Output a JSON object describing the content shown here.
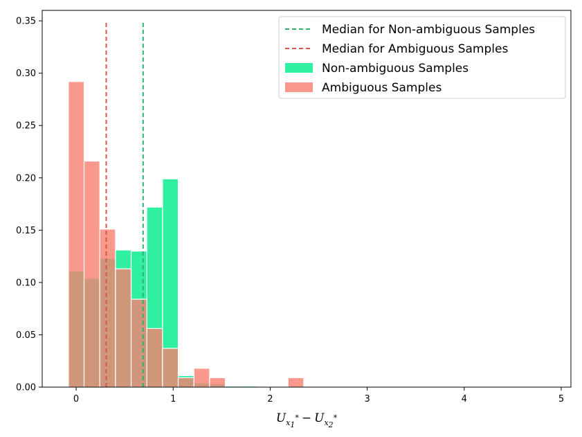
{
  "chart_data": {
    "type": "bar",
    "title": "",
    "xlabel": {
      "U": "U",
      "x": "x",
      "sub1": "1",
      "sub2": "2",
      "star": "*",
      "minus": "−"
    },
    "ylabel": "",
    "xlim": [
      -0.35,
      5.1
    ],
    "ylim": [
      0,
      0.36
    ],
    "xticks": [
      0,
      1,
      2,
      3,
      4,
      5
    ],
    "xtick_labels": [
      "0",
      "1",
      "2",
      "3",
      "4",
      "5"
    ],
    "yticks": [
      0.0,
      0.05,
      0.1,
      0.15,
      0.2,
      0.25,
      0.3,
      0.35
    ],
    "ytick_labels": [
      "0.00",
      "0.05",
      "0.10",
      "0.15",
      "0.20",
      "0.25",
      "0.30",
      "0.35"
    ],
    "bin_width": 0.1617,
    "bin_start": -0.08,
    "grid": false,
    "legend_position": "top-right",
    "series": [
      {
        "name": "Non-ambiguous Samples",
        "kind": "hist",
        "color": "#2ef0a0",
        "values": [
          0.111,
          0.104,
          0.123,
          0.131,
          0.13,
          0.172,
          0.199,
          0.011,
          0.004,
          0.003,
          0.001,
          0.001,
          0.0005,
          0.0005,
          0.0005,
          0.0003
        ]
      },
      {
        "name": "Ambiguous Samples",
        "kind": "hist",
        "color": "#f88070",
        "values": [
          0.292,
          0.216,
          0.151,
          0.113,
          0.084,
          0.056,
          0.037,
          0.009,
          0.018,
          0.009,
          0,
          0,
          0,
          0,
          0.009,
          0
        ]
      },
      {
        "name": "Median for Non-ambiguous Samples",
        "kind": "vline",
        "color": "#2ab56a",
        "x": 0.69,
        "ymax": 0.35
      },
      {
        "name": "Median for Ambiguous Samples",
        "kind": "vline",
        "color": "#d9534f",
        "x": 0.31,
        "ymax": 0.35
      }
    ],
    "legend_order": [
      "Median for Non-ambiguous Samples",
      "Median for Ambiguous Samples",
      "Non-ambiguous Samples",
      "Ambiguous Samples"
    ]
  }
}
